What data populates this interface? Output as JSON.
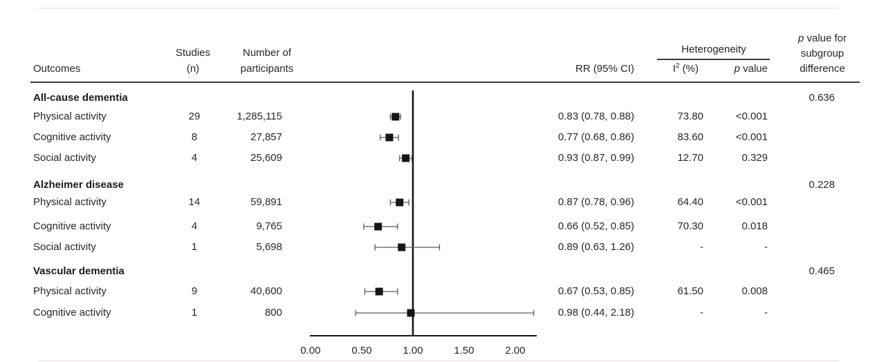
{
  "header": {
    "outcomes": "Outcomes",
    "studies_line1": "Studies",
    "studies_line2": "(n)",
    "participants_line1": "Number of",
    "participants_line2": "participants",
    "rr": "RR (95% CI)",
    "heterogeneity": "Heterogeneity",
    "i2_base": "I",
    "i2_sup": "2",
    "i2_rest": " (%)",
    "p_italic": "p",
    "p_value_rest": " value",
    "subgroup_p_italic": "p",
    "subgroup_line1_rest": " value for",
    "subgroup_line2": "subgroup",
    "subgroup_line3": "difference"
  },
  "chart_data": {
    "type": "forest",
    "ref_line": 1.0,
    "x_ticks": [
      "0.00",
      "0.50",
      "1.00",
      "1.50",
      "2.00"
    ],
    "x_tick_values": [
      0,
      0.5,
      1,
      1.5,
      2
    ],
    "x_range": [
      0,
      2.2
    ],
    "colors": {
      "marker": "#161616",
      "ci": "#58595b",
      "text": "#282625"
    },
    "groups": [
      {
        "name": "All-cause dementia",
        "subgroup_p": "0.636",
        "rows": [
          {
            "label": "Physical activity",
            "studies": "29",
            "participants": "1,285,115",
            "rr": 0.83,
            "ci_low": 0.78,
            "ci_high": 0.88,
            "rr_ci": "0.83 (0.78, 0.88)",
            "i2": "73.80",
            "p_value": "<0.001"
          },
          {
            "label": "Cognitive activity",
            "studies": "8",
            "participants": "27,857",
            "rr": 0.77,
            "ci_low": 0.68,
            "ci_high": 0.86,
            "rr_ci": "0.77 (0.68, 0.86)",
            "i2": "83.60",
            "p_value": "<0.001"
          },
          {
            "label": "Social activity",
            "studies": "4",
            "participants": "25,609",
            "rr": 0.93,
            "ci_low": 0.87,
            "ci_high": 0.99,
            "rr_ci": "0.93 (0.87, 0.99)",
            "i2": "12.70",
            "p_value": "0.329"
          }
        ]
      },
      {
        "name": "Alzheimer disease",
        "subgroup_p": "0.228",
        "rows": [
          {
            "label": "Physical activity",
            "studies": "14",
            "participants": "59,891",
            "rr": 0.87,
            "ci_low": 0.78,
            "ci_high": 0.96,
            "rr_ci": "0.87 (0.78, 0.96)",
            "i2": "64.40",
            "p_value": "<0.001"
          },
          {
            "label": "Cognitive activity",
            "studies": "4",
            "participants": "9,765",
            "rr": 0.66,
            "ci_low": 0.52,
            "ci_high": 0.85,
            "rr_ci": "0.66 (0.52, 0.85)",
            "i2": "70.30",
            "p_value": "0.018"
          },
          {
            "label": "Social activity",
            "studies": "1",
            "participants": "5,698",
            "rr": 0.89,
            "ci_low": 0.63,
            "ci_high": 1.26,
            "rr_ci": "0.89 (0.63, 1.26)",
            "i2": "-",
            "p_value": "-"
          }
        ]
      },
      {
        "name": "Vascular dementia",
        "subgroup_p": "0.465",
        "rows": [
          {
            "label": "Physical activity",
            "studies": "9",
            "participants": "40,600",
            "rr": 0.67,
            "ci_low": 0.53,
            "ci_high": 0.85,
            "rr_ci": "0.67 (0.53, 0.85)",
            "i2": "61.50",
            "p_value": "0.008"
          },
          {
            "label": "Cognitive activity",
            "studies": "1",
            "participants": "800",
            "rr": 0.98,
            "ci_low": 0.44,
            "ci_high": 2.18,
            "rr_ci": "0.98 (0.44, 2.18)",
            "i2": "-",
            "p_value": "-"
          }
        ]
      }
    ]
  }
}
